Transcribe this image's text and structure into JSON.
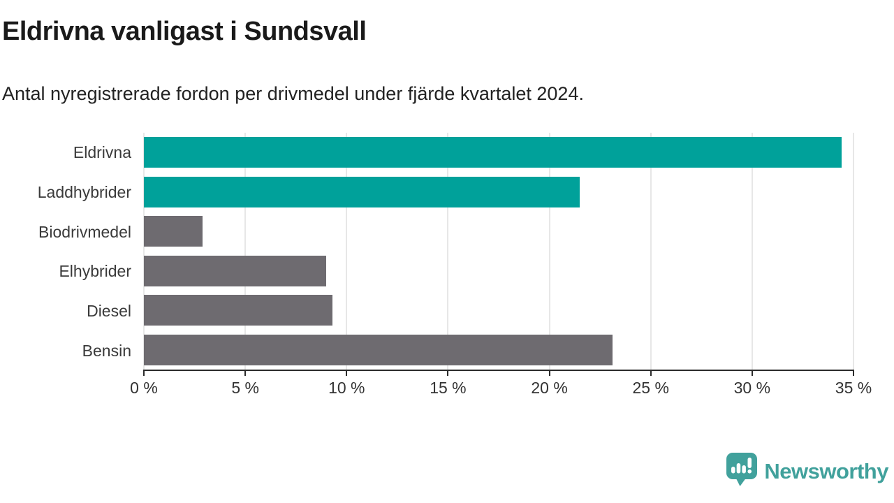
{
  "title": "Eldrivna vanligast i Sundsvall",
  "subtitle": "Antal nyregistrerade fordon per drivmedel under fjärde kvartalet 2024.",
  "colors": {
    "accent_teal": "#00A19A",
    "neutral_gray": "#6E6B70",
    "gridline": "#E7E7E7",
    "axis": "#2B2B2B",
    "logo_teal": "#41A19C"
  },
  "chart_data": {
    "type": "bar",
    "orientation": "horizontal",
    "title": "Eldrivna vanligast i Sundsvall",
    "subtitle": "Antal nyregistrerade fordon per drivmedel under fjärde kvartalet 2024.",
    "categories": [
      "Eldrivna",
      "Laddhybrider",
      "Biodrivmedel",
      "Elhybrider",
      "Diesel",
      "Bensin"
    ],
    "values": [
      34.4,
      21.5,
      2.9,
      9.0,
      9.3,
      23.1
    ],
    "bar_colors": [
      "#00A19A",
      "#00A19A",
      "#6E6B70",
      "#6E6B70",
      "#6E6B70",
      "#6E6B70"
    ],
    "unit": "%",
    "xlim": [
      0,
      35
    ],
    "x_ticks": [
      0,
      5,
      10,
      15,
      20,
      25,
      30,
      35
    ],
    "x_tick_labels": [
      "0 %",
      "5 %",
      "10 %",
      "15 %",
      "20 %",
      "25 %",
      "30 %",
      "35 %"
    ],
    "grid": true,
    "legend": false
  },
  "footer": {
    "logo_text": "Newsworthy"
  }
}
